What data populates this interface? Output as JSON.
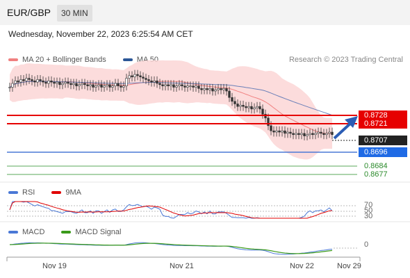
{
  "header": {
    "pair": "EUR/GBP",
    "timeframe": "30 MIN"
  },
  "datetime": "Wednesday, November 22, 2023 6:25:54 AM CET",
  "legend_main": {
    "bb_label": "MA 20 + Bollinger Bands",
    "ma50_label": "MA 50",
    "bb_color": "#f08080",
    "ma50_color": "#2b5797"
  },
  "research": "Research © 2023 Trading Central",
  "levels": {
    "r2": "0.8728",
    "r1": "0.8721",
    "current": "0.8707",
    "pivot": "0.8696",
    "s1": "0.8684",
    "s2": "0.8677"
  },
  "legend_rsi": {
    "rsi_label": "RSI",
    "ma_label": "9MA",
    "rsi_color": "#4a78d6",
    "ma_color": "#e00000"
  },
  "rsi_levels": [
    "70",
    "50",
    "30"
  ],
  "legend_macd": {
    "macd_label": "MACD",
    "signal_label": "MACD Signal",
    "macd_color": "#4a78d6",
    "signal_color": "#3a9a1a"
  },
  "macd_level": "0",
  "x_labels": [
    "Nov 19",
    "Nov 21",
    "Nov 22",
    "Nov 29"
  ],
  "chart_data": {
    "type": "candlestick",
    "instrument": "EUR/GBP",
    "interval": "30 MIN",
    "candles_close": [
      0.8746,
      0.8749,
      0.8751,
      0.875,
      0.8752,
      0.8751,
      0.8753,
      0.8752,
      0.8751,
      0.875,
      0.8752,
      0.8751,
      0.875,
      0.8749,
      0.8751,
      0.875,
      0.8749,
      0.875,
      0.8748,
      0.8749,
      0.875,
      0.8749,
      0.8748,
      0.8749,
      0.8747,
      0.8748,
      0.8749,
      0.8748,
      0.8747,
      0.8748,
      0.8746,
      0.8747,
      0.8748,
      0.8746,
      0.8747,
      0.8748,
      0.8746,
      0.8747,
      0.8749,
      0.8747,
      0.8746,
      0.8747,
      0.8753,
      0.8755,
      0.8754,
      0.8756,
      0.8755,
      0.8754,
      0.8753,
      0.8752,
      0.8751,
      0.875,
      0.8751,
      0.8749,
      0.8748,
      0.8747,
      0.8748,
      0.8747,
      0.8748,
      0.8746,
      0.8747,
      0.8748,
      0.8747,
      0.8746,
      0.8747,
      0.8747,
      0.8746,
      0.8747,
      0.8745,
      0.8744,
      0.8745,
      0.8744,
      0.8745,
      0.8743,
      0.8744,
      0.8745,
      0.8744,
      0.8745,
      0.8743,
      0.8738,
      0.8735,
      0.8733,
      0.8731,
      0.8732,
      0.8731,
      0.873,
      0.8731,
      0.8729,
      0.873,
      0.8731,
      0.8729,
      0.8725,
      0.8722,
      0.8716,
      0.8712,
      0.8711,
      0.8712,
      0.8711,
      0.8712,
      0.871,
      0.8711,
      0.871,
      0.8709,
      0.871,
      0.8709,
      0.871,
      0.8708,
      0.8709,
      0.871,
      0.8709,
      0.871,
      0.8711,
      0.871,
      0.8709,
      0.871,
      0.8711,
      0.8709
    ],
    "ma50_overlay": true,
    "bollinger_overlay": true,
    "support_resistance": [
      0.8728,
      0.8721,
      0.8696,
      0.8684,
      0.8677
    ],
    "last_price": 0.8707,
    "projection_arrow": {
      "from": 0.871,
      "to": 0.8724
    },
    "y_range": [
      0.8672,
      0.8762
    ],
    "x_labels": [
      "Nov 19",
      "Nov 21",
      "Nov 22",
      "Nov 29"
    ],
    "rsi": {
      "levels": [
        70,
        50,
        30
      ],
      "range": [
        20,
        80
      ]
    },
    "macd": {
      "zero_level": 0
    }
  }
}
